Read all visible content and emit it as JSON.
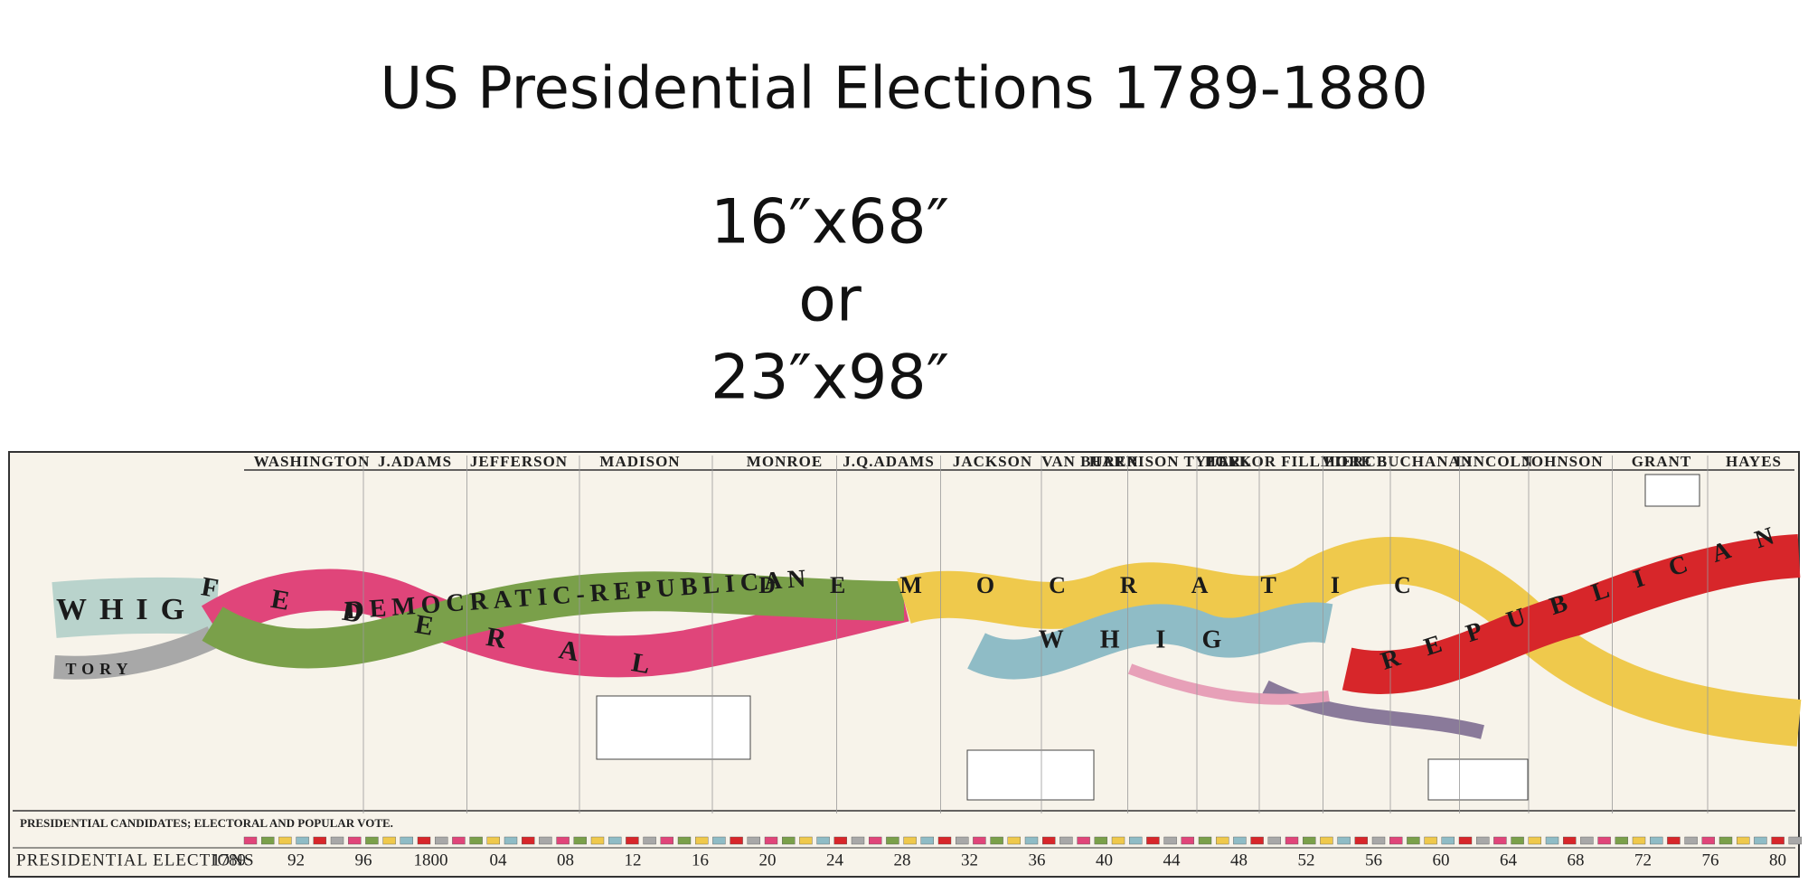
{
  "header": {
    "title": "US Presidential Elections 1789-1880",
    "sizes": [
      "16″x68″",
      "or",
      "23″x98″"
    ]
  },
  "chart": {
    "presidents": [
      "WASHINGTON",
      "J.ADAMS",
      "JEFFERSON",
      "MADISON",
      "MONROE",
      "J.Q.ADAMS",
      "JACKSON",
      "VAN BUREN",
      "HARRISON TYLER",
      "POLK",
      "TAYLOR FILLMORE",
      "PIERCE",
      "BUCHANAN",
      "LINCOLN",
      "JOHNSON",
      "GRANT",
      "HAYES"
    ],
    "parties": [
      "WHIG",
      "TORY",
      "FEDERAL",
      "DEMOCRATIC-REPUBLICAN",
      "DEMOCRATIC",
      "WHIG",
      "REPUBLICAN"
    ],
    "candidates_caption": "PRESIDENTIAL CANDIDATES; ELECTORAL AND POPULAR VOTE.",
    "footer_title": "PRESIDENTIAL ELECTIONS",
    "years": [
      "1789",
      "92",
      "96",
      "1800",
      "04",
      "08",
      "12",
      "16",
      "20",
      "24",
      "28",
      "32",
      "36",
      "40",
      "44",
      "48",
      "52",
      "56",
      "60",
      "64",
      "68",
      "72",
      "76",
      "80"
    ]
  }
}
